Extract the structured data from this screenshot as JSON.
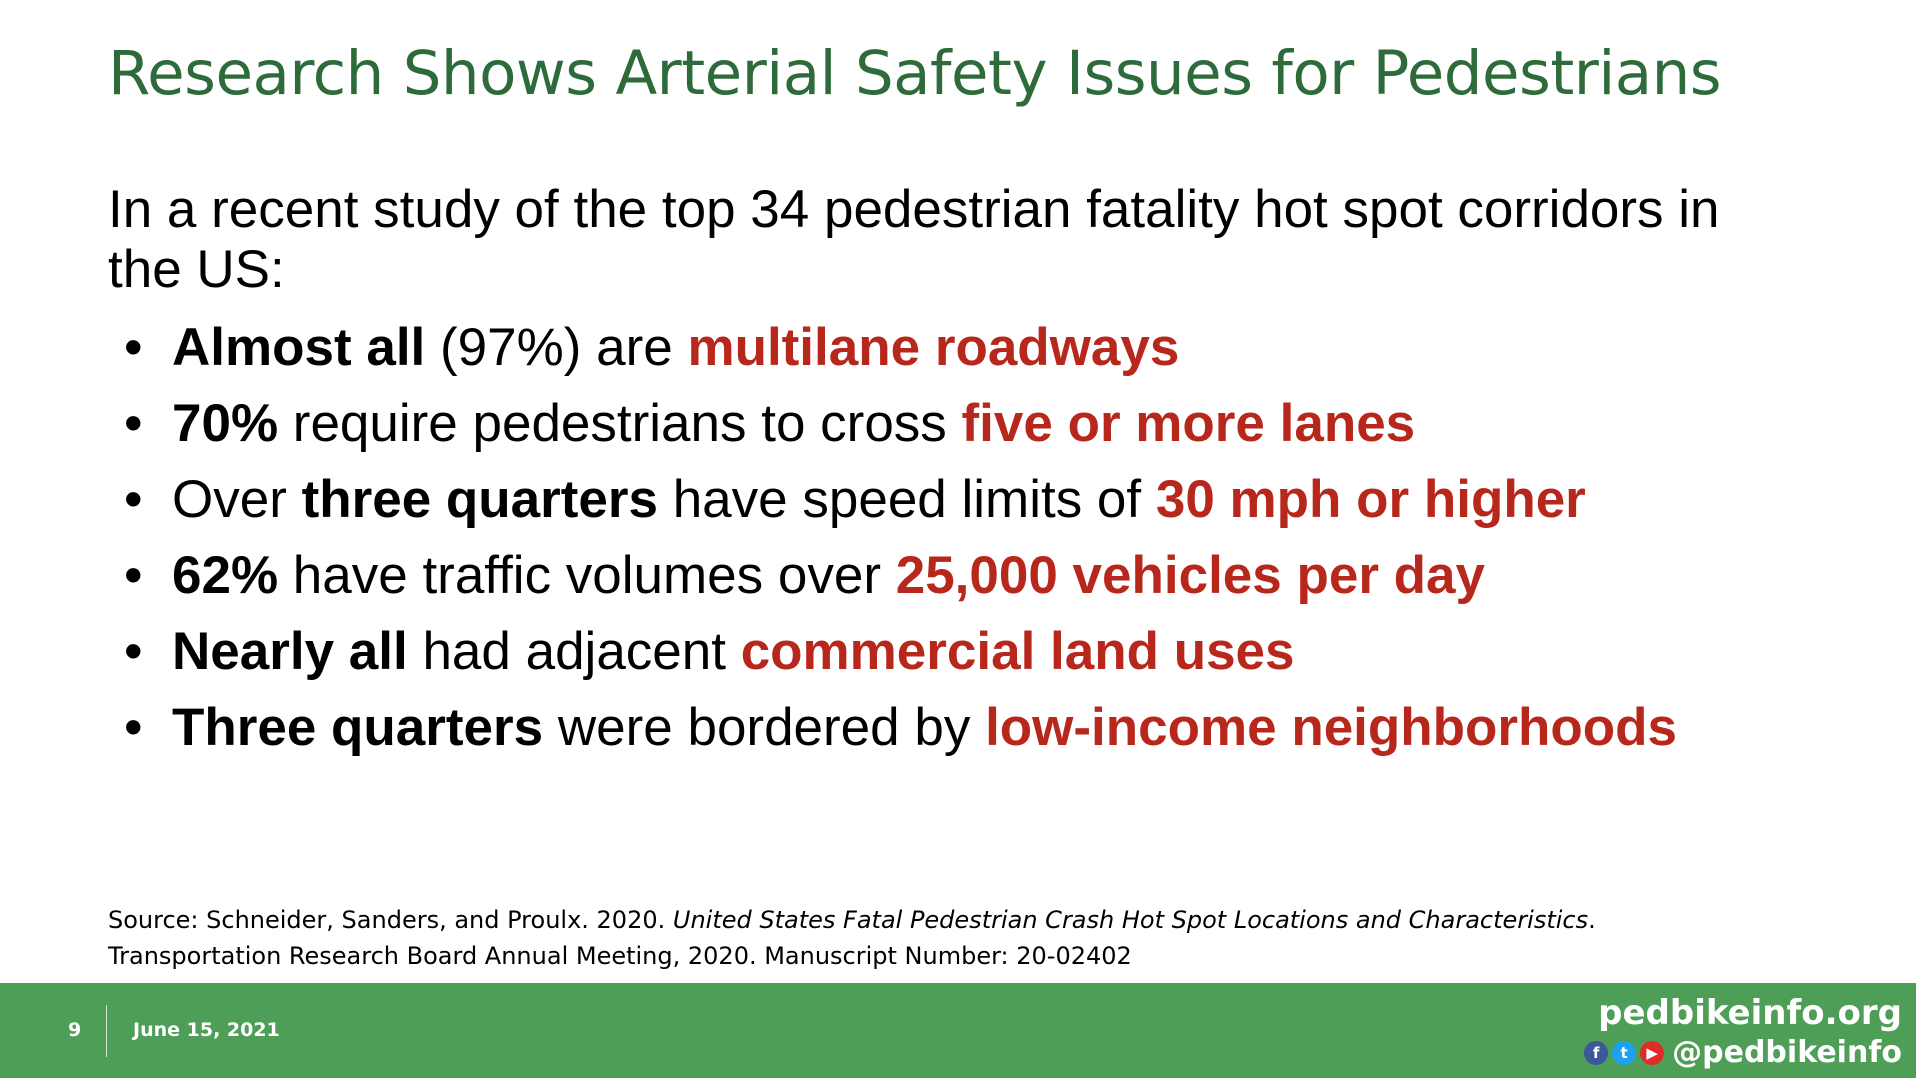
{
  "title": "Research Shows Arterial Safety Issues for Pedestrians",
  "intro": "In a recent study of the top 34 pedestrian fatality hot spot corridors in the US:",
  "bullets": [
    {
      "a": "Almost all",
      "b": " (97%) are ",
      "c": "multilane roadways"
    },
    {
      "a": "70%",
      "b": " require pedestrians to cross ",
      "c": "five or more lanes"
    },
    {
      "a": "Over ",
      "b": "three quarters",
      "c": " have speed limits of ",
      "d": "30 mph or higher"
    },
    {
      "a": "62%",
      "b": " have traffic volumes over ",
      "c": "25,000 vehicles per day"
    },
    {
      "a": "Nearly all",
      "b": " had adjacent ",
      "c": "commercial land uses"
    },
    {
      "a": "Three quarters",
      "b": " were bordered by ",
      "c": "low-income neighborhoods"
    }
  ],
  "bullet_symbol": "•",
  "source": {
    "prefix": "Source: Schneider, Sanders, and Proulx. 2020. ",
    "title": "United States Fatal Pedestrian Crash Hot Spot Locations and Characteristics",
    "suffix": ".",
    "line2": "Transportation Research Board Annual Meeting, 2020. Manuscript Number: 20-02402"
  },
  "footer": {
    "page_number": "9",
    "date": "June 15, 2021",
    "site": "pedbikeinfo.org",
    "handle": "@pedbikeinfo",
    "icons": {
      "facebook": "f",
      "twitter": "t",
      "youtube": "▶"
    }
  },
  "colors": {
    "title": "#2e6b3b",
    "highlight": "#b7271c",
    "footer": "#4f9e57"
  }
}
